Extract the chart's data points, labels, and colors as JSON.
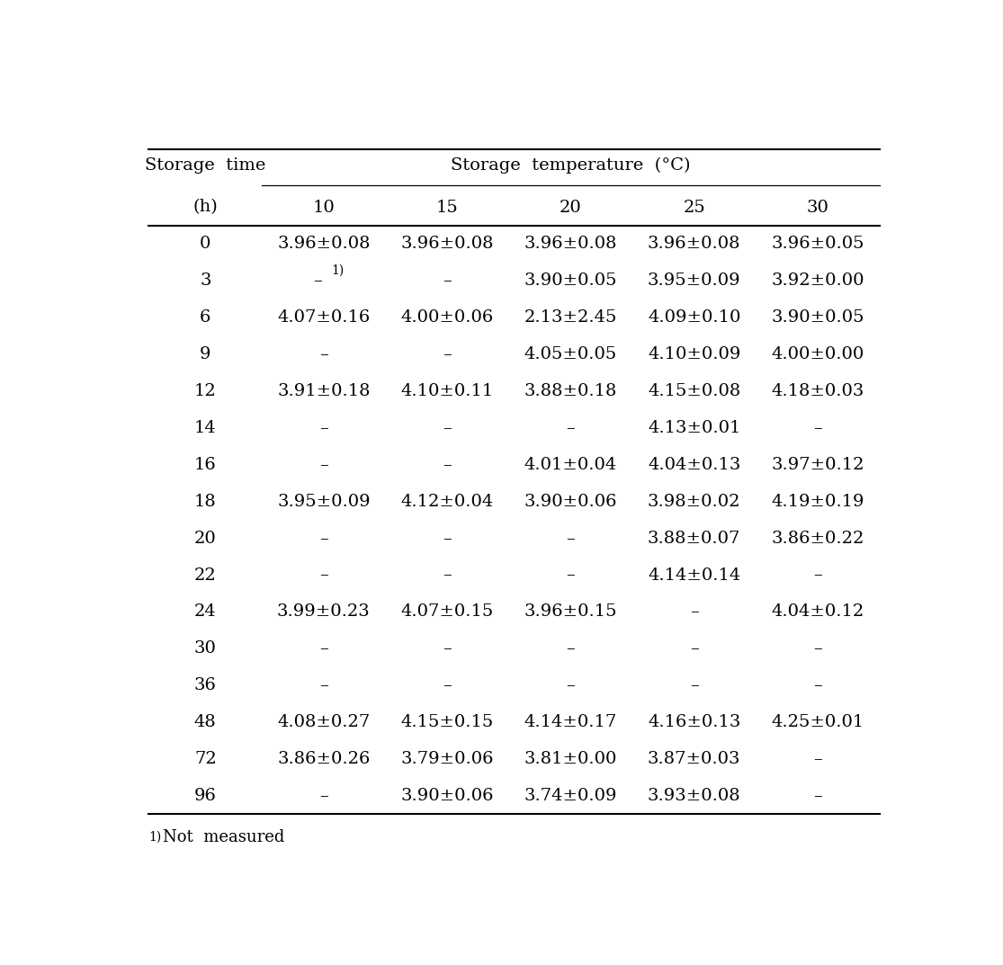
{
  "col_headers": [
    "10",
    "15",
    "20",
    "25",
    "30"
  ],
  "rows": [
    [
      "0",
      "3.96±0.08",
      "3.96±0.08",
      "3.96±0.08",
      "3.96±0.08",
      "3.96±0.05"
    ],
    [
      "3",
      "–",
      "–",
      "3.90±0.05",
      "3.95±0.09",
      "3.92±0.00"
    ],
    [
      "6",
      "4.07±0.16",
      "4.00±0.06",
      "2.13±2.45",
      "4.09±0.10",
      "3.90±0.05"
    ],
    [
      "9",
      "–",
      "–",
      "4.05±0.05",
      "4.10±0.09",
      "4.00±0.00"
    ],
    [
      "12",
      "3.91±0.18",
      "4.10±0.11",
      "3.88±0.18",
      "4.15±0.08",
      "4.18±0.03"
    ],
    [
      "14",
      "–",
      "–",
      "–",
      "4.13±0.01",
      "–"
    ],
    [
      "16",
      "–",
      "–",
      "4.01±0.04",
      "4.04±0.13",
      "3.97±0.12"
    ],
    [
      "18",
      "3.95±0.09",
      "4.12±0.04",
      "3.90±0.06",
      "3.98±0.02",
      "4.19±0.19"
    ],
    [
      "20",
      "–",
      "–",
      "–",
      "3.88±0.07",
      "3.86±0.22"
    ],
    [
      "22",
      "–",
      "–",
      "–",
      "4.14±0.14",
      "–"
    ],
    [
      "24",
      "3.99±0.23",
      "4.07±0.15",
      "3.96±0.15",
      "–",
      "4.04±0.12"
    ],
    [
      "30",
      "–",
      "–",
      "–",
      "–",
      "–"
    ],
    [
      "36",
      "–",
      "–",
      "–",
      "–",
      "–"
    ],
    [
      "48",
      "4.08±0.27",
      "4.15±0.15",
      "4.14±0.17",
      "4.16±0.13",
      "4.25±0.01"
    ],
    [
      "72",
      "3.86±0.26",
      "3.79±0.06",
      "3.81±0.00",
      "3.87±0.03",
      "–"
    ],
    [
      "96",
      "–",
      "3.90±0.06",
      "3.74±0.09",
      "3.93±0.08",
      "–"
    ]
  ],
  "row3_col1_special": true,
  "bg_color": "#ffffff",
  "text_color": "#000000",
  "line_color": "#000000",
  "font_size": 14,
  "small_font_size": 10
}
